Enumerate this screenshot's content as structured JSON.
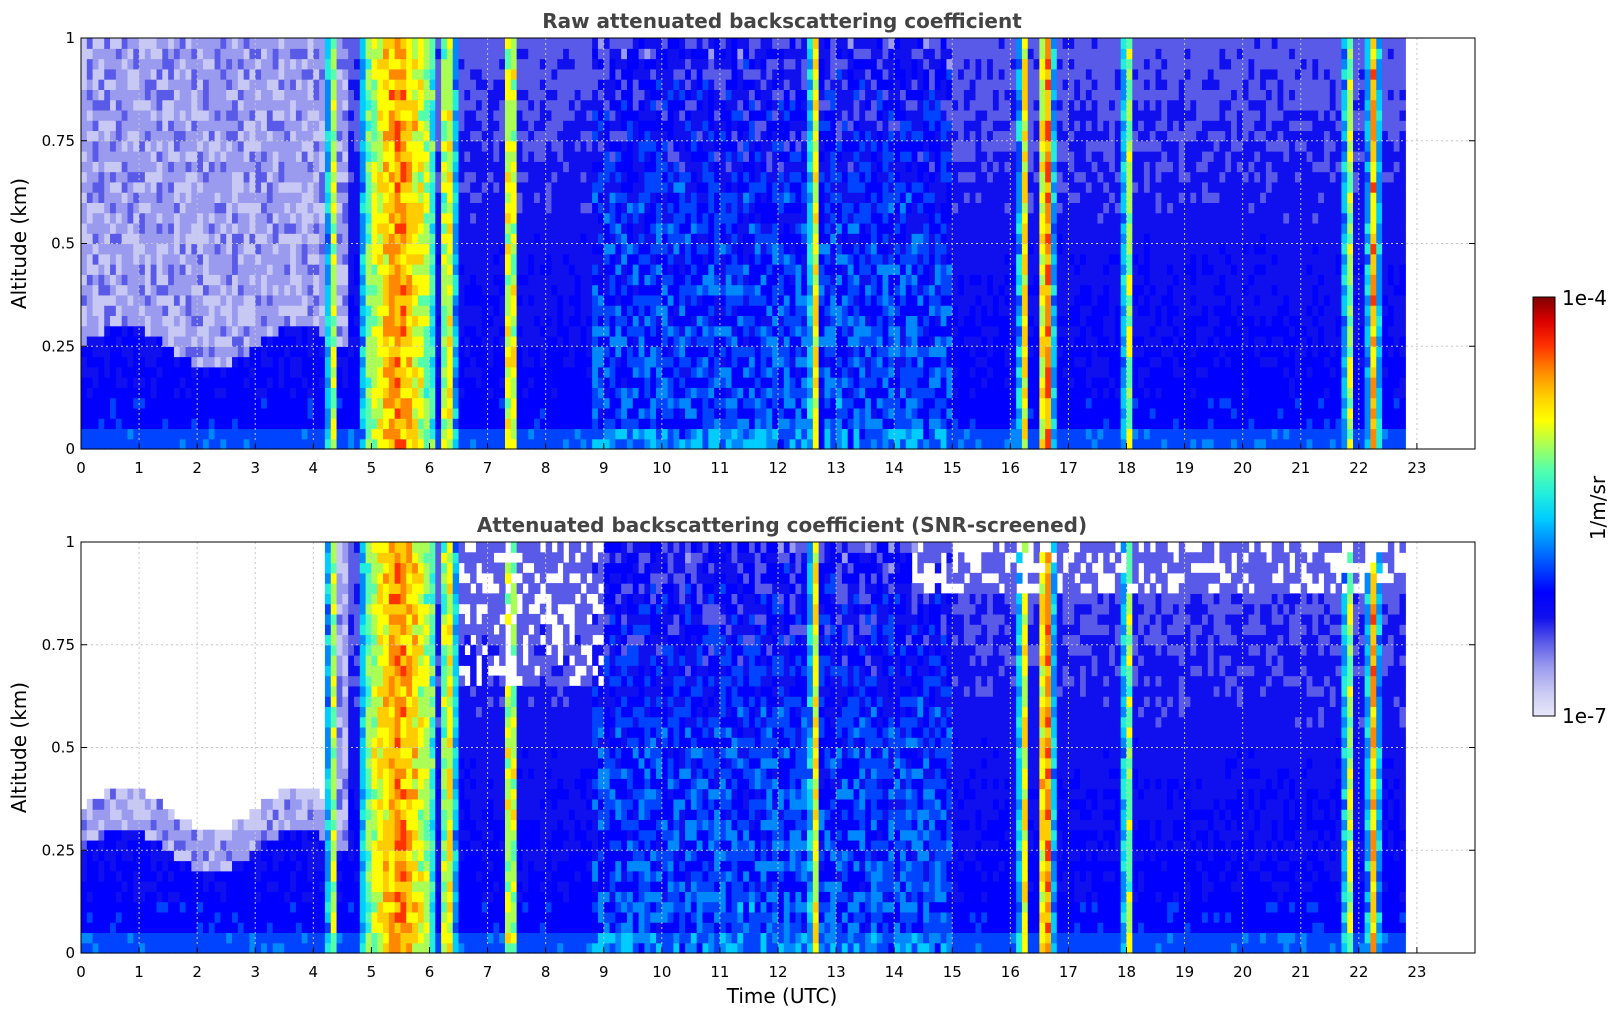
{
  "chart_data": [
    {
      "type": "heatmap",
      "title": "Raw attenuated backscattering coefficient",
      "xlabel": "",
      "ylabel": "Altitude (km)",
      "xlim": [
        0,
        24
      ],
      "ylim": [
        0,
        1
      ],
      "x_data_end": 22.8,
      "x_ticks": [
        "0",
        "1",
        "2",
        "3",
        "4",
        "5",
        "6",
        "7",
        "8",
        "9",
        "10",
        "11",
        "12",
        "13",
        "14",
        "15",
        "16",
        "17",
        "18",
        "19",
        "20",
        "21",
        "22",
        "23"
      ],
      "y_ticks": [
        "0",
        "0.25",
        "0.5",
        "0.75",
        "1"
      ],
      "grid": true,
      "screened": false
    },
    {
      "type": "heatmap",
      "title": "Attenuated backscattering coefficient (SNR-screened)",
      "xlabel": "Time (UTC)",
      "ylabel": "Altitude (km)",
      "xlim": [
        0,
        24
      ],
      "ylim": [
        0,
        1
      ],
      "x_data_end": 22.8,
      "x_ticks": [
        "0",
        "1",
        "2",
        "3",
        "4",
        "5",
        "6",
        "7",
        "8",
        "9",
        "10",
        "11",
        "12",
        "13",
        "14",
        "15",
        "16",
        "17",
        "18",
        "19",
        "20",
        "21",
        "22",
        "23"
      ],
      "y_ticks": [
        "0",
        "0.25",
        "0.5",
        "0.75",
        "1"
      ],
      "grid": true,
      "screened": true
    }
  ],
  "colorbar": {
    "label": "1/m/sr",
    "max_label": "1e-4",
    "min_label": "1e-7",
    "colors": [
      "#e8e8fa",
      "#c8c8f4",
      "#9a9aee",
      "#5a5ae8",
      "#1010ee",
      "#0000ff",
      "#0044ff",
      "#0088ff",
      "#00ccff",
      "#22eedd",
      "#55ffaa",
      "#aaff55",
      "#ffff00",
      "#ffcc00",
      "#ff8800",
      "#ff3300",
      "#dd0000",
      "#7f0000"
    ]
  },
  "features": {
    "clouds": [
      {
        "t0": 4.25,
        "t1": 4.4,
        "level": 0.55
      },
      {
        "t0": 4.85,
        "t1": 6.1,
        "level": 0.82
      },
      {
        "t0": 6.2,
        "t1": 6.45,
        "level": 0.62
      },
      {
        "t0": 7.3,
        "t1": 7.5,
        "level": 0.7
      },
      {
        "t0": 12.55,
        "t1": 12.7,
        "level": 0.7
      },
      {
        "t0": 16.15,
        "t1": 16.3,
        "level": 0.7
      },
      {
        "t0": 16.5,
        "t1": 16.75,
        "level": 0.95
      },
      {
        "t0": 17.95,
        "t1": 18.1,
        "level": 0.5
      },
      {
        "t0": 21.75,
        "t1": 21.9,
        "level": 0.55
      },
      {
        "t0": 22.15,
        "t1": 22.35,
        "level": 0.75
      }
    ]
  }
}
